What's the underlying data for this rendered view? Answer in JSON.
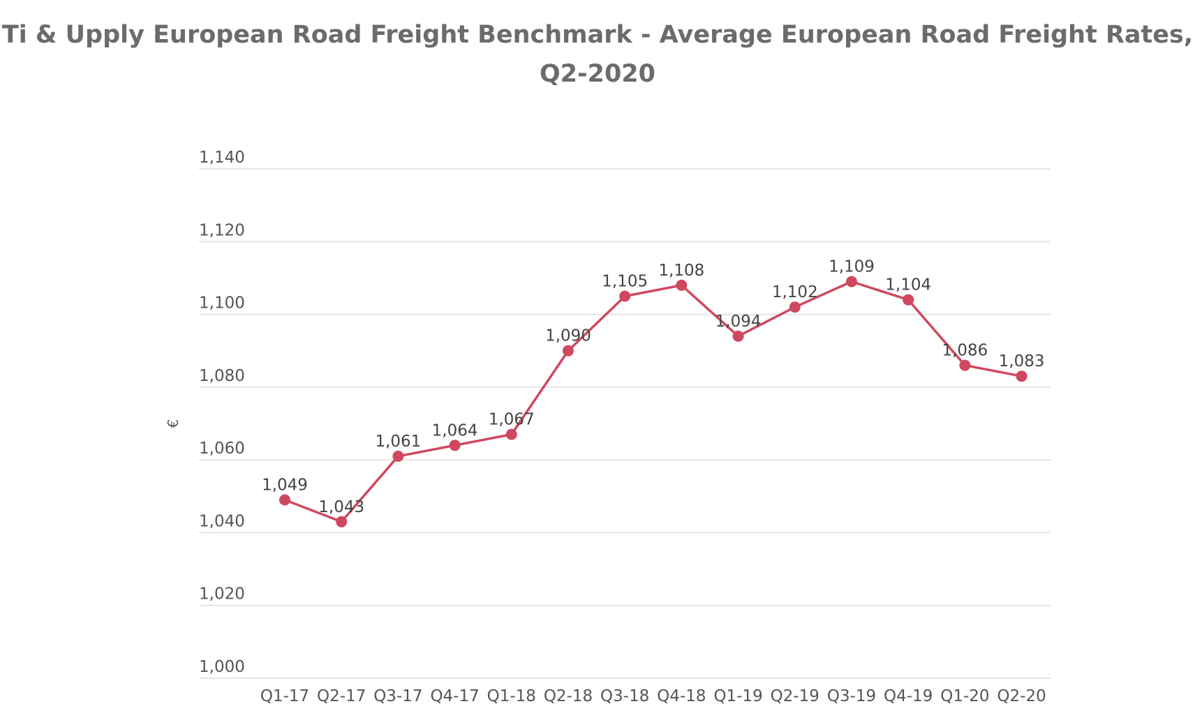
{
  "chart_data": {
    "type": "line",
    "title": "Ti & Upply European Road Freight Benchmark - Average European Road Freight Rates,",
    "subtitle": "Q2-2020",
    "xlabel": "",
    "ylabel": "€",
    "categories": [
      "Q1-17",
      "Q2-17",
      "Q3-17",
      "Q4-17",
      "Q1-18",
      "Q2-18",
      "Q3-18",
      "Q4-18",
      "Q1-19",
      "Q2-19",
      "Q3-19",
      "Q4-19",
      "Q1-20",
      "Q2-20"
    ],
    "series": [
      {
        "values": [
          1049,
          1043,
          1061,
          1064,
          1067,
          1090,
          1105,
          1108,
          1094,
          1102,
          1109,
          1104,
          1086,
          1083
        ],
        "color": "#d0485f"
      }
    ],
    "data_labels": [
      "1,049",
      "1,043",
      "1,061",
      "1,064",
      "1,067",
      "1,090",
      "1,105",
      "1,108",
      "1,094",
      "1,102",
      "1,109",
      "1,104",
      "1,086",
      "1,083"
    ],
    "ylim": [
      1000,
      1140
    ],
    "yticks": [
      1000,
      1020,
      1040,
      1060,
      1080,
      1100,
      1120,
      1140
    ],
    "ytick_labels": [
      "1,000",
      "1,020",
      "1,040",
      "1,060",
      "1,080",
      "1,100",
      "1,120",
      "1,140"
    ],
    "grid": true,
    "colors": {
      "line": "#d0485f",
      "grid": "#dddddd",
      "text": "#555555",
      "title": "#6b6b6b"
    }
  }
}
